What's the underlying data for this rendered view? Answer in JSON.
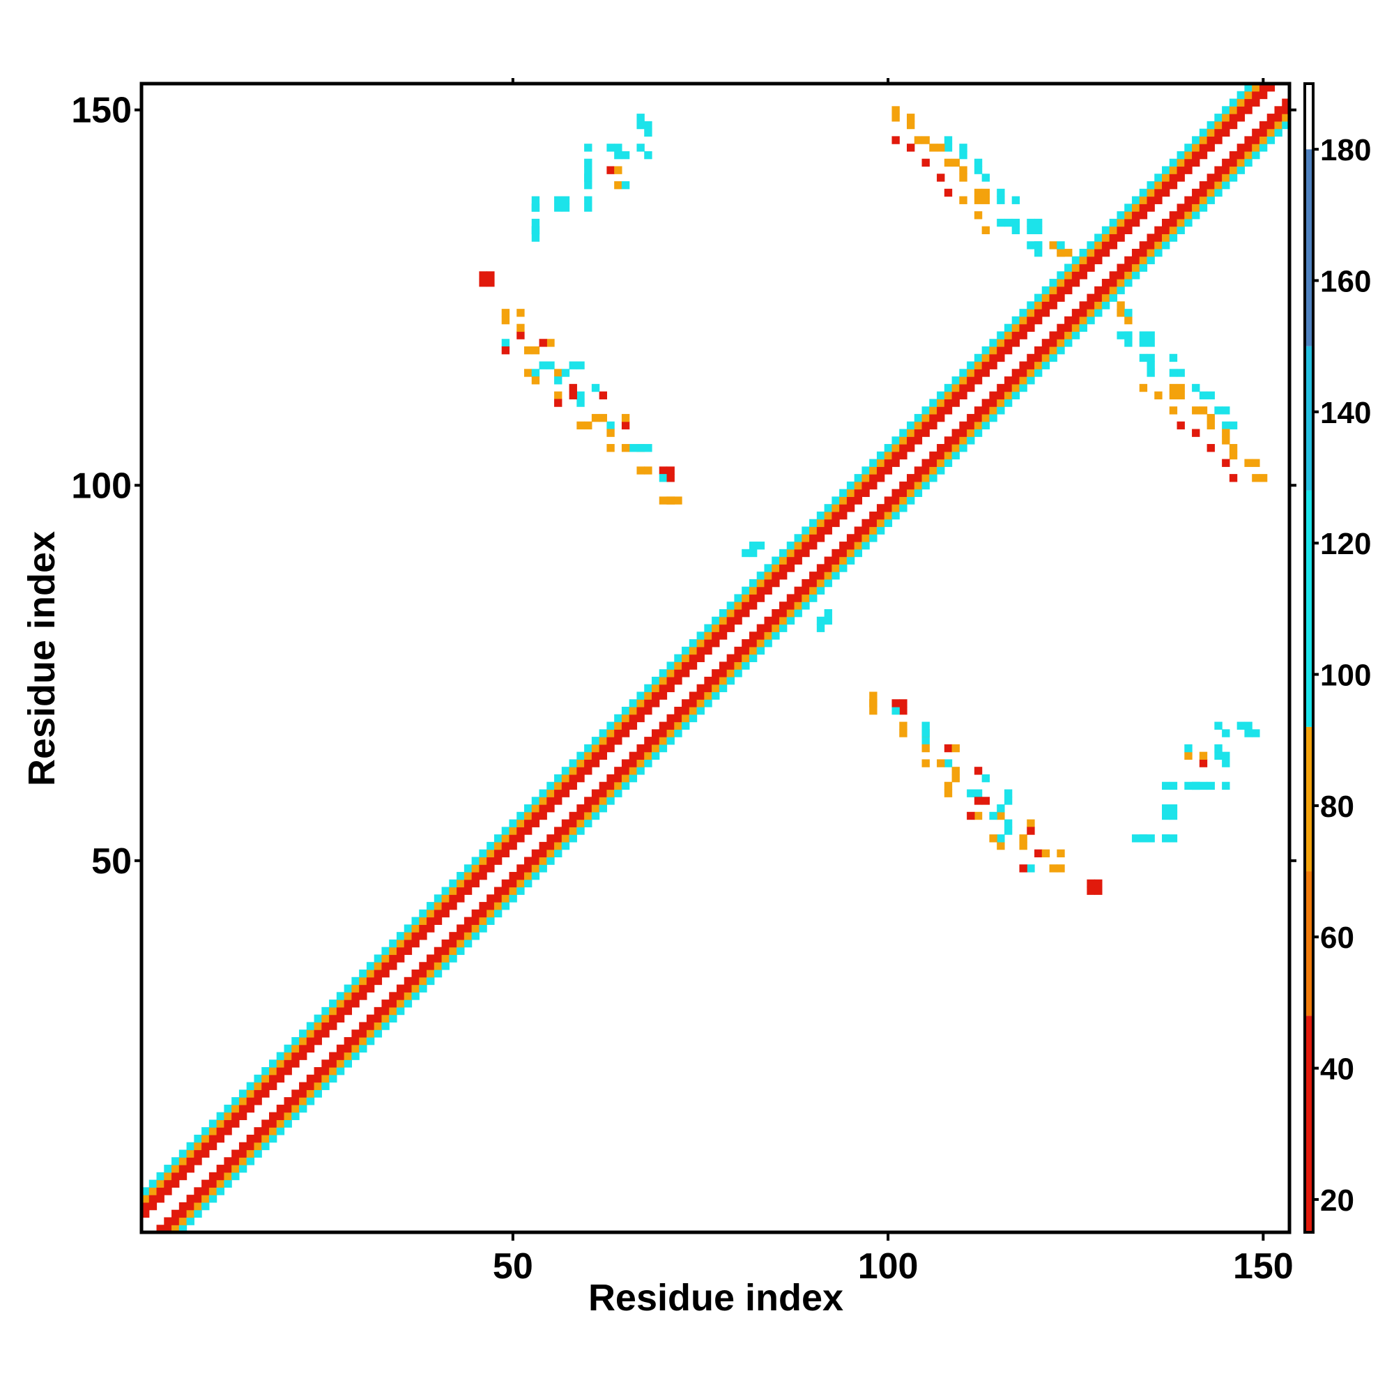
{
  "chart_data": {
    "type": "heatmap",
    "title": "",
    "xlabel": "Residue index",
    "ylabel": "Residue index",
    "xlim": [
      1,
      153
    ],
    "ylim": [
      1,
      153
    ],
    "xticks": [
      50,
      100,
      150
    ],
    "yticks": [
      50,
      100,
      150
    ],
    "x_tick_labels": [
      "50",
      "100",
      "150"
    ],
    "y_tick_labels": [
      "50",
      "100",
      "150"
    ],
    "grid": false,
    "colorbar": {
      "range": [
        15,
        190
      ],
      "ticks": [
        20,
        40,
        60,
        80,
        100,
        120,
        140,
        160,
        180
      ],
      "tick_labels": [
        "20",
        "40",
        "60",
        "80",
        "100",
        "120",
        "140",
        "160",
        "180"
      ],
      "bands": [
        {
          "from": 15,
          "to": 48,
          "color": "#e11a0c"
        },
        {
          "from": 48,
          "to": 70,
          "color": "#f07a0a"
        },
        {
          "from": 70,
          "to": 92,
          "color": "#f4a20c"
        },
        {
          "from": 92,
          "to": 128,
          "color": "#1ce3ea"
        },
        {
          "from": 128,
          "to": 150,
          "color": "#25bfe0"
        },
        {
          "from": 150,
          "to": 180,
          "color": "#4f82c0"
        },
        {
          "from": 180,
          "to": 190,
          "color": "#ffffff"
        }
      ]
    },
    "diagonal_band": {
      "residues": [
        1,
        153
      ],
      "inner_value": 30,
      "mid_value": 85,
      "outer_value": 105
    },
    "contacts": [
      {
        "x": 46,
        "y": 127,
        "v": 30
      },
      {
        "x": 46,
        "y": 128,
        "v": 30
      },
      {
        "x": 49,
        "y": 123,
        "v": 75
      },
      {
        "x": 49,
        "y": 122,
        "v": 75
      },
      {
        "x": 49,
        "y": 119,
        "v": 110
      },
      {
        "x": 49,
        "y": 118,
        "v": 30
      },
      {
        "x": 52,
        "y": 118,
        "v": 75
      },
      {
        "x": 53,
        "y": 118,
        "v": 75
      },
      {
        "x": 52,
        "y": 115,
        "v": 75
      },
      {
        "x": 53,
        "y": 115,
        "v": 110
      },
      {
        "x": 53,
        "y": 114,
        "v": 75
      },
      {
        "x": 56,
        "y": 115,
        "v": 75
      },
      {
        "x": 57,
        "y": 115,
        "v": 110
      },
      {
        "x": 56,
        "y": 114,
        "v": 110
      },
      {
        "x": 56,
        "y": 112,
        "v": 75
      },
      {
        "x": 56,
        "y": 111,
        "v": 30
      },
      {
        "x": 59,
        "y": 112,
        "v": 110
      },
      {
        "x": 59,
        "y": 111,
        "v": 110
      },
      {
        "x": 59,
        "y": 108,
        "v": 75
      },
      {
        "x": 60,
        "y": 108,
        "v": 75
      },
      {
        "x": 63,
        "y": 108,
        "v": 110
      },
      {
        "x": 63,
        "y": 107,
        "v": 75
      },
      {
        "x": 63,
        "y": 105,
        "v": 75
      },
      {
        "x": 66,
        "y": 105,
        "v": 110
      },
      {
        "x": 67,
        "y": 105,
        "v": 75
      },
      {
        "x": 67,
        "y": 102,
        "v": 75
      },
      {
        "x": 70,
        "y": 102,
        "v": 30
      },
      {
        "x": 70,
        "y": 101,
        "v": 110
      },
      {
        "x": 70,
        "y": 98,
        "v": 75
      },
      {
        "x": 71,
        "y": 98,
        "v": 75
      },
      {
        "x": 53,
        "y": 138,
        "v": 110
      },
      {
        "x": 53,
        "y": 137,
        "v": 110
      },
      {
        "x": 53,
        "y": 135,
        "v": 110
      },
      {
        "x": 53,
        "y": 134,
        "v": 110
      },
      {
        "x": 56,
        "y": 138,
        "v": 110
      },
      {
        "x": 57,
        "y": 138,
        "v": 110
      },
      {
        "x": 60,
        "y": 138,
        "v": 110
      },
      {
        "x": 60,
        "y": 141,
        "v": 110
      },
      {
        "x": 60,
        "y": 142,
        "v": 110
      },
      {
        "x": 60,
        "y": 145,
        "v": 110
      },
      {
        "x": 63,
        "y": 142,
        "v": 30
      },
      {
        "x": 64,
        "y": 142,
        "v": 75
      },
      {
        "x": 63,
        "y": 145,
        "v": 110
      },
      {
        "x": 64,
        "y": 145,
        "v": 110
      },
      {
        "x": 67,
        "y": 145,
        "v": 110
      },
      {
        "x": 67,
        "y": 148,
        "v": 110
      },
      {
        "x": 67,
        "y": 149,
        "v": 110
      },
      {
        "x": 82,
        "y": 92,
        "v": 110
      },
      {
        "x": 83,
        "y": 92,
        "v": 110
      },
      {
        "x": 91,
        "y": 81,
        "v": 110
      },
      {
        "x": 91,
        "y": 82,
        "v": 110
      },
      {
        "x": 98,
        "y": 71,
        "v": 75
      },
      {
        "x": 98,
        "y": 72,
        "v": 75
      },
      {
        "x": 101,
        "y": 71,
        "v": 30
      },
      {
        "x": 102,
        "y": 71,
        "v": 30
      },
      {
        "x": 102,
        "y": 68,
        "v": 75
      },
      {
        "x": 105,
        "y": 68,
        "v": 110
      },
      {
        "x": 105,
        "y": 67,
        "v": 110
      },
      {
        "x": 105,
        "y": 65,
        "v": 75
      },
      {
        "x": 108,
        "y": 65,
        "v": 30
      },
      {
        "x": 109,
        "y": 65,
        "v": 75
      },
      {
        "x": 109,
        "y": 62,
        "v": 75
      },
      {
        "x": 109,
        "y": 61,
        "v": 75
      },
      {
        "x": 112,
        "y": 62,
        "v": 30
      },
      {
        "x": 112,
        "y": 58,
        "v": 30
      },
      {
        "x": 113,
        "y": 58,
        "v": 30
      },
      {
        "x": 113,
        "y": 61,
        "v": 110
      },
      {
        "x": 116,
        "y": 58,
        "v": 110
      },
      {
        "x": 116,
        "y": 59,
        "v": 110
      },
      {
        "x": 116,
        "y": 55,
        "v": 110
      },
      {
        "x": 116,
        "y": 54,
        "v": 110
      },
      {
        "x": 119,
        "y": 55,
        "v": 75
      },
      {
        "x": 119,
        "y": 54,
        "v": 30
      },
      {
        "x": 120,
        "y": 51,
        "v": 30
      },
      {
        "x": 121,
        "y": 51,
        "v": 75
      },
      {
        "x": 123,
        "y": 51,
        "v": 75
      },
      {
        "x": 127,
        "y": 47,
        "v": 30
      },
      {
        "x": 128,
        "y": 47,
        "v": 30
      },
      {
        "x": 133,
        "y": 53,
        "v": 110
      },
      {
        "x": 134,
        "y": 53,
        "v": 110
      },
      {
        "x": 137,
        "y": 53,
        "v": 110
      },
      {
        "x": 137,
        "y": 56,
        "v": 110
      },
      {
        "x": 137,
        "y": 57,
        "v": 110
      },
      {
        "x": 137,
        "y": 60,
        "v": 110
      },
      {
        "x": 140,
        "y": 60,
        "v": 110
      },
      {
        "x": 141,
        "y": 60,
        "v": 110
      },
      {
        "x": 143,
        "y": 60,
        "v": 110
      },
      {
        "x": 140,
        "y": 64,
        "v": 75
      },
      {
        "x": 140,
        "y": 65,
        "v": 110
      },
      {
        "x": 144,
        "y": 64,
        "v": 110
      },
      {
        "x": 144,
        "y": 65,
        "v": 110
      },
      {
        "x": 144,
        "y": 68,
        "v": 110
      },
      {
        "x": 147,
        "y": 68,
        "v": 110
      },
      {
        "x": 148,
        "y": 68,
        "v": 110
      },
      {
        "x": 101,
        "y": 150,
        "v": 75
      },
      {
        "x": 101,
        "y": 149,
        "v": 75
      },
      {
        "x": 101,
        "y": 146,
        "v": 30
      },
      {
        "x": 104,
        "y": 146,
        "v": 75
      },
      {
        "x": 105,
        "y": 146,
        "v": 75
      },
      {
        "x": 108,
        "y": 146,
        "v": 110
      },
      {
        "x": 108,
        "y": 145,
        "v": 110
      },
      {
        "x": 105,
        "y": 143,
        "v": 30
      },
      {
        "x": 108,
        "y": 143,
        "v": 75
      },
      {
        "x": 109,
        "y": 143,
        "v": 75
      },
      {
        "x": 112,
        "y": 143,
        "v": 110
      },
      {
        "x": 112,
        "y": 142,
        "v": 110
      },
      {
        "x": 108,
        "y": 139,
        "v": 30
      },
      {
        "x": 112,
        "y": 139,
        "v": 75
      },
      {
        "x": 112,
        "y": 138,
        "v": 75
      },
      {
        "x": 115,
        "y": 139,
        "v": 110
      },
      {
        "x": 115,
        "y": 138,
        "v": 110
      },
      {
        "x": 112,
        "y": 136,
        "v": 75
      },
      {
        "x": 115,
        "y": 135,
        "v": 110
      },
      {
        "x": 116,
        "y": 135,
        "v": 110
      },
      {
        "x": 119,
        "y": 135,
        "v": 110
      },
      {
        "x": 119,
        "y": 134,
        "v": 110
      },
      {
        "x": 119,
        "y": 132,
        "v": 110
      },
      {
        "x": 120,
        "y": 132,
        "v": 110
      },
      {
        "x": 122,
        "y": 132,
        "v": 75
      },
      {
        "x": 123,
        "y": 131,
        "v": 75
      },
      {
        "x": 131,
        "y": 124,
        "v": 75
      },
      {
        "x": 131,
        "y": 123,
        "v": 75
      },
      {
        "x": 132,
        "y": 123,
        "v": 110
      },
      {
        "x": 131,
        "y": 120,
        "v": 110
      },
      {
        "x": 132,
        "y": 120,
        "v": 110
      },
      {
        "x": 134,
        "y": 120,
        "v": 110
      },
      {
        "x": 135,
        "y": 120,
        "v": 110
      },
      {
        "x": 134,
        "y": 117,
        "v": 110
      },
      {
        "x": 135,
        "y": 117,
        "v": 110
      },
      {
        "x": 138,
        "y": 117,
        "v": 110
      },
      {
        "x": 134,
        "y": 113,
        "v": 75
      },
      {
        "x": 138,
        "y": 113,
        "v": 75
      },
      {
        "x": 139,
        "y": 113,
        "v": 75
      },
      {
        "x": 141,
        "y": 113,
        "v": 110
      },
      {
        "x": 138,
        "y": 110,
        "v": 75
      },
      {
        "x": 141,
        "y": 110,
        "v": 75
      },
      {
        "x": 142,
        "y": 110,
        "v": 75
      },
      {
        "x": 144,
        "y": 110,
        "v": 110
      },
      {
        "x": 145,
        "y": 110,
        "v": 110
      },
      {
        "x": 141,
        "y": 107,
        "v": 30
      },
      {
        "x": 145,
        "y": 107,
        "v": 75
      },
      {
        "x": 145,
        "y": 106,
        "v": 75
      },
      {
        "x": 145,
        "y": 103,
        "v": 30
      },
      {
        "x": 148,
        "y": 103,
        "v": 75
      },
      {
        "x": 149,
        "y": 103,
        "v": 75
      }
    ]
  }
}
